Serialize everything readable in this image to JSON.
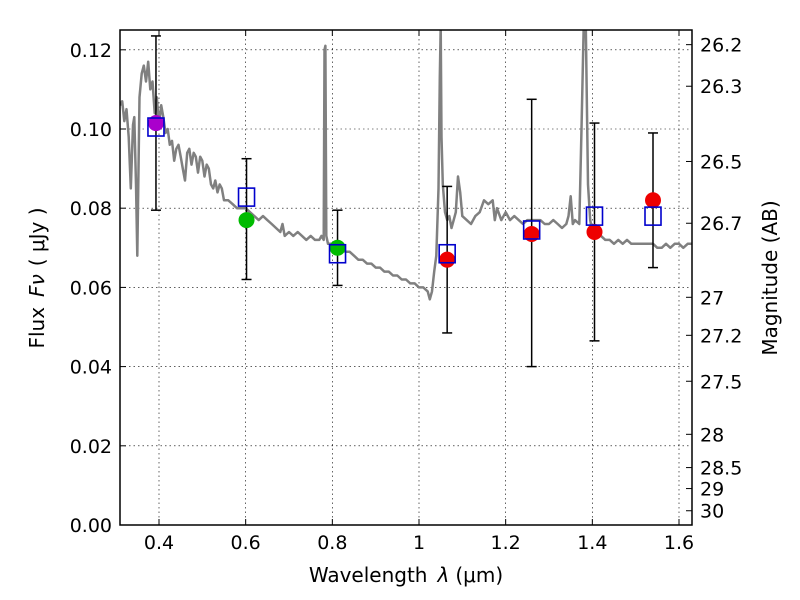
{
  "chart_data": {
    "type": "scatter",
    "xlabel_text": "Wavelength",
    "xlabel_symbol": "λ",
    "xlabel_units": "(μm)",
    "ylabel_text": "Flux",
    "ylabel_symbol": "Fν",
    "ylabel_units": "( μJy )",
    "y2label": "Magnitude (AB)",
    "xlim": [
      0.31,
      1.63
    ],
    "ylim": [
      0.0,
      0.125
    ],
    "grid": true,
    "x_ticks": [
      0.4,
      0.6,
      0.8,
      1.0,
      1.2,
      1.4,
      1.6
    ],
    "x_tick_labels": [
      "0.4",
      "0.6",
      "0.8",
      "1",
      "1.2",
      "1.4",
      "1.6"
    ],
    "y_ticks": [
      0.0,
      0.02,
      0.04,
      0.06,
      0.08,
      0.1,
      0.12
    ],
    "y_tick_labels": [
      "0.00",
      "0.02",
      "0.04",
      "0.06",
      "0.08",
      "0.10",
      "0.12"
    ],
    "mag_ticks": [
      {
        "flux": 0.1213,
        "label": "26.2"
      },
      {
        "flux": 0.1108,
        "label": "26.3"
      },
      {
        "flux": 0.0918,
        "label": "26.5"
      },
      {
        "flux": 0.0762,
        "label": "26.7"
      },
      {
        "flux": 0.0575,
        "label": "27"
      },
      {
        "flux": 0.0479,
        "label": "27.2"
      },
      {
        "flux": 0.0363,
        "label": "27.5"
      },
      {
        "flux": 0.0229,
        "label": "28"
      },
      {
        "flux": 0.0145,
        "label": "28.5"
      },
      {
        "flux": 0.0092,
        "label": "29"
      },
      {
        "flux": 0.0036,
        "label": "30"
      }
    ],
    "model_spectrum": {
      "color": "#808080",
      "points": [
        [
          0.31,
          0.106
        ],
        [
          0.315,
          0.107
        ],
        [
          0.32,
          0.102
        ],
        [
          0.325,
          0.105
        ],
        [
          0.33,
          0.098
        ],
        [
          0.335,
          0.085
        ],
        [
          0.34,
          0.101
        ],
        [
          0.343,
          0.103
        ],
        [
          0.347,
          0.086
        ],
        [
          0.35,
          0.068
        ],
        [
          0.355,
          0.108
        ],
        [
          0.36,
          0.114
        ],
        [
          0.365,
          0.116
        ],
        [
          0.37,
          0.112
        ],
        [
          0.375,
          0.117
        ],
        [
          0.38,
          0.11
        ],
        [
          0.385,
          0.112
        ],
        [
          0.39,
          0.104
        ],
        [
          0.395,
          0.108
        ],
        [
          0.4,
          0.101
        ],
        [
          0.405,
          0.106
        ],
        [
          0.41,
          0.103
        ],
        [
          0.415,
          0.099
        ],
        [
          0.42,
          0.1
        ],
        [
          0.425,
          0.096
        ],
        [
          0.43,
          0.097
        ],
        [
          0.435,
          0.092
        ],
        [
          0.44,
          0.095
        ],
        [
          0.445,
          0.096
        ],
        [
          0.45,
          0.093
        ],
        [
          0.455,
          0.09
        ],
        [
          0.46,
          0.087
        ],
        [
          0.465,
          0.094
        ],
        [
          0.47,
          0.095
        ],
        [
          0.475,
          0.091
        ],
        [
          0.48,
          0.094
        ],
        [
          0.485,
          0.093
        ],
        [
          0.49,
          0.089
        ],
        [
          0.495,
          0.093
        ],
        [
          0.5,
          0.092
        ],
        [
          0.505,
          0.088
        ],
        [
          0.51,
          0.091
        ],
        [
          0.515,
          0.09
        ],
        [
          0.52,
          0.086
        ],
        [
          0.525,
          0.085
        ],
        [
          0.53,
          0.087
        ],
        [
          0.535,
          0.084
        ],
        [
          0.54,
          0.086
        ],
        [
          0.545,
          0.085
        ],
        [
          0.55,
          0.082
        ],
        [
          0.56,
          0.082
        ],
        [
          0.57,
          0.081
        ],
        [
          0.58,
          0.08
        ],
        [
          0.59,
          0.08
        ],
        [
          0.6,
          0.08
        ],
        [
          0.61,
          0.079
        ],
        [
          0.62,
          0.078
        ],
        [
          0.63,
          0.077
        ],
        [
          0.64,
          0.078
        ],
        [
          0.65,
          0.077
        ],
        [
          0.66,
          0.076
        ],
        [
          0.67,
          0.075
        ],
        [
          0.68,
          0.074
        ],
        [
          0.685,
          0.076
        ],
        [
          0.69,
          0.073
        ],
        [
          0.7,
          0.074
        ],
        [
          0.71,
          0.073
        ],
        [
          0.72,
          0.074
        ],
        [
          0.73,
          0.073
        ],
        [
          0.74,
          0.072
        ],
        [
          0.75,
          0.073
        ],
        [
          0.76,
          0.072
        ],
        [
          0.77,
          0.072
        ],
        [
          0.775,
          0.073
        ],
        [
          0.78,
          0.072
        ],
        [
          0.782,
          0.12
        ],
        [
          0.784,
          0.121
        ],
        [
          0.786,
          0.073
        ],
        [
          0.79,
          0.071
        ],
        [
          0.8,
          0.071
        ],
        [
          0.81,
          0.071
        ],
        [
          0.82,
          0.07
        ],
        [
          0.83,
          0.069
        ],
        [
          0.84,
          0.069
        ],
        [
          0.85,
          0.068
        ],
        [
          0.86,
          0.067
        ],
        [
          0.87,
          0.067
        ],
        [
          0.88,
          0.066
        ],
        [
          0.89,
          0.066
        ],
        [
          0.9,
          0.065
        ],
        [
          0.91,
          0.065
        ],
        [
          0.92,
          0.064
        ],
        [
          0.93,
          0.064
        ],
        [
          0.94,
          0.063
        ],
        [
          0.95,
          0.063
        ],
        [
          0.96,
          0.062
        ],
        [
          0.97,
          0.062
        ],
        [
          0.98,
          0.061
        ],
        [
          0.99,
          0.061
        ],
        [
          1.0,
          0.06
        ],
        [
          1.01,
          0.06
        ],
        [
          1.02,
          0.059
        ],
        [
          1.025,
          0.057
        ],
        [
          1.03,
          0.059
        ],
        [
          1.035,
          0.064
        ],
        [
          1.04,
          0.068
        ],
        [
          1.045,
          0.085
        ],
        [
          1.048,
          0.113
        ],
        [
          1.05,
          0.126
        ],
        [
          1.052,
          0.098
        ],
        [
          1.055,
          0.086
        ],
        [
          1.06,
          0.079
        ],
        [
          1.065,
          0.077
        ],
        [
          1.07,
          0.078
        ],
        [
          1.075,
          0.075
        ],
        [
          1.08,
          0.077
        ],
        [
          1.085,
          0.079
        ],
        [
          1.09,
          0.088
        ],
        [
          1.095,
          0.084
        ],
        [
          1.1,
          0.078
        ],
        [
          1.11,
          0.077
        ],
        [
          1.12,
          0.076
        ],
        [
          1.13,
          0.078
        ],
        [
          1.14,
          0.079
        ],
        [
          1.15,
          0.082
        ],
        [
          1.16,
          0.081
        ],
        [
          1.17,
          0.082
        ],
        [
          1.175,
          0.077
        ],
        [
          1.18,
          0.08
        ],
        [
          1.19,
          0.077
        ],
        [
          1.2,
          0.079
        ],
        [
          1.21,
          0.077
        ],
        [
          1.22,
          0.078
        ],
        [
          1.23,
          0.077
        ],
        [
          1.24,
          0.076
        ],
        [
          1.25,
          0.077
        ],
        [
          1.26,
          0.077
        ],
        [
          1.27,
          0.077
        ],
        [
          1.28,
          0.077
        ],
        [
          1.29,
          0.076
        ],
        [
          1.3,
          0.076
        ],
        [
          1.31,
          0.077
        ],
        [
          1.32,
          0.076
        ],
        [
          1.33,
          0.075
        ],
        [
          1.34,
          0.076
        ],
        [
          1.345,
          0.078
        ],
        [
          1.35,
          0.083
        ],
        [
          1.355,
          0.076
        ],
        [
          1.36,
          0.077
        ],
        [
          1.37,
          0.076
        ],
        [
          1.375,
          0.1
        ],
        [
          1.38,
          0.126
        ],
        [
          1.385,
          0.126
        ],
        [
          1.39,
          0.086
        ],
        [
          1.395,
          0.077
        ],
        [
          1.4,
          0.074
        ],
        [
          1.41,
          0.073
        ],
        [
          1.42,
          0.073
        ],
        [
          1.43,
          0.072
        ],
        [
          1.44,
          0.072
        ],
        [
          1.45,
          0.071
        ],
        [
          1.46,
          0.072
        ],
        [
          1.47,
          0.071
        ],
        [
          1.48,
          0.072
        ],
        [
          1.49,
          0.071
        ],
        [
          1.5,
          0.071
        ],
        [
          1.51,
          0.071
        ],
        [
          1.52,
          0.071
        ],
        [
          1.53,
          0.071
        ],
        [
          1.54,
          0.071
        ],
        [
          1.55,
          0.07
        ],
        [
          1.56,
          0.07
        ],
        [
          1.57,
          0.071
        ],
        [
          1.58,
          0.07
        ],
        [
          1.59,
          0.071
        ],
        [
          1.6,
          0.071
        ],
        [
          1.61,
          0.07
        ],
        [
          1.62,
          0.071
        ],
        [
          1.63,
          0.071
        ]
      ]
    },
    "model_boxes": {
      "color": "#0000cc",
      "points": [
        {
          "x": 0.393,
          "y": 0.1005
        },
        {
          "x": 0.602,
          "y": 0.0828
        },
        {
          "x": 0.812,
          "y": 0.0685
        },
        {
          "x": 1.065,
          "y": 0.0685
        },
        {
          "x": 1.26,
          "y": 0.0745
        },
        {
          "x": 1.405,
          "y": 0.078
        },
        {
          "x": 1.54,
          "y": 0.078
        }
      ]
    },
    "observed": [
      {
        "x": 0.393,
        "y": 0.1015,
        "yerr_low": 0.0795,
        "yerr_high": 0.1235,
        "color": "#aa00cc"
      },
      {
        "x": 0.602,
        "y": 0.077,
        "yerr_low": 0.062,
        "yerr_high": 0.0925,
        "color": "#00bb00"
      },
      {
        "x": 0.812,
        "y": 0.07,
        "yerr_low": 0.0605,
        "yerr_high": 0.0795,
        "color": "#00bb00"
      },
      {
        "x": 1.065,
        "y": 0.067,
        "yerr_low": 0.0485,
        "yerr_high": 0.0855,
        "color": "#ee0000"
      },
      {
        "x": 1.26,
        "y": 0.0735,
        "yerr_low": 0.04,
        "yerr_high": 0.1075,
        "color": "#ee0000"
      },
      {
        "x": 1.405,
        "y": 0.074,
        "yerr_low": 0.0465,
        "yerr_high": 0.1015,
        "color": "#ee0000"
      },
      {
        "x": 1.54,
        "y": 0.082,
        "yerr_low": 0.065,
        "yerr_high": 0.099,
        "color": "#ee0000"
      }
    ]
  }
}
